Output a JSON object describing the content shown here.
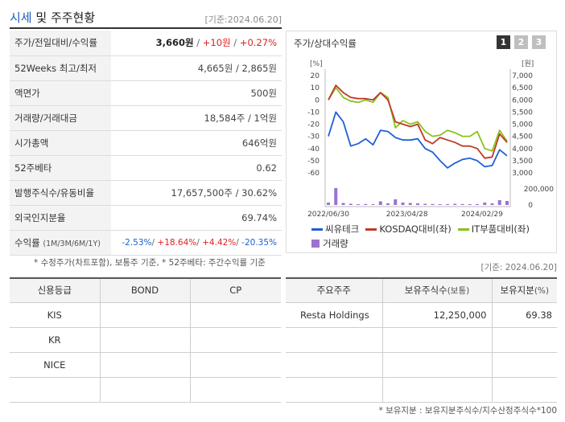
{
  "header": {
    "title_main": "시세",
    "title_rest": " 및 주주현황",
    "date": "[기준:2024.06.20]"
  },
  "quote": {
    "price_label": "주가/전일대비/수익률",
    "price": "3,660원",
    "change": "+10원",
    "change_pct": "+0.27%",
    "wk52_label": "52Weeks 최고/최저",
    "wk52_value": "4,665원 / 2,865원",
    "par_label": "액면가",
    "par_value": "500원",
    "volume_label": "거래량/거래대금",
    "volume_value": "18,584주 / 1억원",
    "mcap_label": "시가총액",
    "mcap_value": "646억원",
    "beta_label": "52주베타",
    "beta_value": "0.62",
    "shares_label": "발행주식수/유동비율",
    "shares_value": "17,657,500주 / 30.62%",
    "foreign_label": "외국인지분율",
    "foreign_value": "69.74%",
    "return_label": "수익률",
    "return_sub": "(1M/3M/6M/1Y)",
    "return_1m": "-2.53%",
    "return_3m": "+18.64%",
    "return_6m": "+4.42%",
    "return_1y": "-20.35%"
  },
  "note1": "* 수정주가(차트포함), 보통주 기준, * 52주베타: 주간수익률 기준",
  "chart_panel": {
    "title": "주가/상대수익률",
    "tabs": [
      "1",
      "2",
      "3"
    ]
  },
  "chart_data": {
    "type": "line",
    "x_ticks": [
      "2022/06/30",
      "2023/04/28",
      "2024/02/29"
    ],
    "left_axis": {
      "unit": "[%]",
      "range": [
        -60,
        20
      ],
      "ticks": [
        20,
        10,
        0,
        -10,
        -20,
        -30,
        -40,
        -50,
        -60
      ]
    },
    "right_axis": {
      "unit": "[원]",
      "range": [
        3000,
        7000
      ],
      "ticks": [
        "7,000",
        "6,500",
        "6,000",
        "5,500",
        "5,000",
        "4,500",
        "4,000",
        "3,500",
        "3,000"
      ]
    },
    "volume_axis": {
      "ticks": [
        "200,000",
        "0"
      ],
      "range": [
        0,
        200000
      ]
    },
    "series": [
      {
        "name": "씨유테크",
        "color": "#1f5fd6",
        "axis": "left",
        "values": [
          -30,
          -10,
          -18,
          -38,
          -36,
          -32,
          -37,
          -25,
          -26,
          -31,
          -33,
          -33,
          -32,
          -40,
          -43,
          -50,
          -56,
          -52,
          -49,
          -48,
          -50,
          -55,
          -54,
          -41,
          -46
        ]
      },
      {
        "name": "KOSDAQ대비(좌)",
        "color": "#c0392b",
        "axis": "left",
        "values": [
          0,
          12,
          6,
          2,
          1,
          1,
          0,
          6,
          0,
          -18,
          -20,
          -22,
          -20,
          -33,
          -36,
          -31,
          -33,
          -35,
          -38,
          -38,
          -40,
          -48,
          -47,
          -28,
          -35
        ]
      },
      {
        "name": "IT부품대비(좌)",
        "color": "#8bc21b",
        "axis": "left",
        "values": [
          0,
          10,
          2,
          -1,
          -2,
          0,
          -2,
          6,
          2,
          -23,
          -17,
          -20,
          -18,
          -26,
          -30,
          -29,
          -25,
          -27,
          -30,
          -30,
          -26,
          -40,
          -42,
          -25,
          -34
        ]
      },
      {
        "name": "거래량",
        "color": "#9b72cf",
        "type": "bar",
        "values": [
          30000,
          210000,
          25000,
          15000,
          10000,
          12000,
          8000,
          45000,
          20000,
          70000,
          30000,
          25000,
          20000,
          15000,
          12000,
          10000,
          10000,
          15000,
          12000,
          10000,
          8000,
          30000,
          20000,
          60000,
          50000
        ]
      }
    ]
  },
  "date2": "[기준: 2024.06.20]",
  "credit": {
    "headers": [
      "신용등급",
      "BOND",
      "CP"
    ],
    "rows": [
      [
        "KIS",
        "",
        ""
      ],
      [
        "KR",
        "",
        ""
      ],
      [
        "NICE",
        "",
        ""
      ],
      [
        "",
        "",
        ""
      ]
    ]
  },
  "holders": {
    "headers": [
      "주요주주",
      "보유주식수",
      "(보통)",
      "보유지분",
      "(%)"
    ],
    "rows": [
      [
        "Resta Holdings",
        "12,250,000",
        "69.38"
      ],
      [
        "",
        "",
        ""
      ],
      [
        "",
        "",
        ""
      ],
      [
        "",
        "",
        ""
      ]
    ]
  },
  "note2": "* 보유지분 : 보유지분주식수/지수산정주식수*100"
}
